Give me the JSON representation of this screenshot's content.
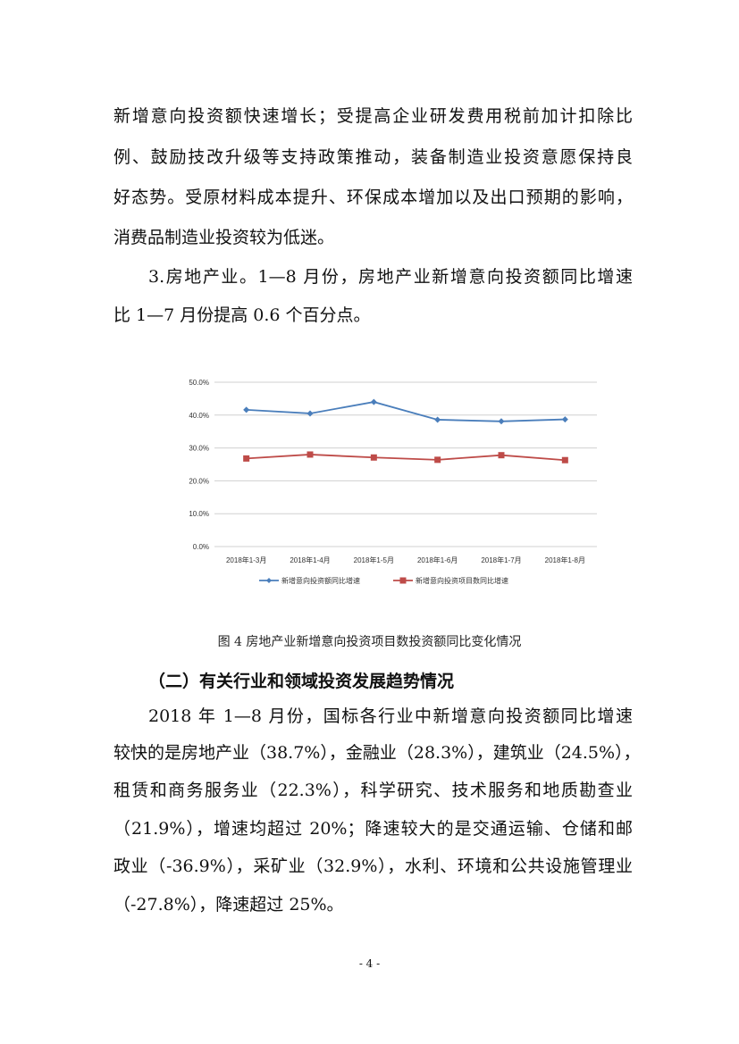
{
  "para1_lines": [
    "新增意向投资额快速增长；受提高企业研发费用税前加计扣除比",
    "例、鼓励技改升级等支持政策推动，装备制造业投资意愿保持良",
    "好态势。受原材料成本提升、环保成本增加以及出口预期的影响，",
    "消费品制造业投资较为低迷。"
  ],
  "para2_lines": [
    "3.房地产业。1—8 月份，房地产业新增意向投资额同比增速",
    "比 1—7 月份提高 0.6 个百分点。"
  ],
  "chart_data": {
    "type": "line",
    "categories": [
      "2018年1-3月",
      "2018年1-4月",
      "2018年1-5月",
      "2018年1-6月",
      "2018年1-7月",
      "2018年1-8月"
    ],
    "y_ticks": [
      "0.0%",
      "10.0%",
      "20.0%",
      "30.0%",
      "40.0%",
      "50.0%"
    ],
    "ylim": [
      0,
      50
    ],
    "grid": true,
    "legend_position": "bottom",
    "series": [
      {
        "name": "新增意向投资额同比增速",
        "values": [
          41.6,
          40.5,
          44.0,
          38.6,
          38.1,
          38.7
        ],
        "color": "#4a7ebb",
        "marker": "diamond"
      },
      {
        "name": "新增意向投资项目数同比增速",
        "values": [
          26.8,
          28.0,
          27.1,
          26.4,
          27.8,
          26.3
        ],
        "color": "#be4b48",
        "marker": "square"
      }
    ]
  },
  "caption": "图 4  房地产业新增意向投资项目数投资额同比变化情况",
  "heading": "（二）有关行业和领域投资发展趋势情况",
  "para3_lines": [
    "2018 年 1—8 月份，国标各行业中新增意向投资额同比增速",
    "较快的是房地产业（38.7%），金融业（28.3%），建筑业（24.5%），",
    "租赁和商务服务业（22.3%），科学研究、技术服务和地质勘查业",
    "（21.9%），增速均超过 20%；降速较大的是交通运输、仓储和邮",
    "政业（-36.9%），采矿业（32.9%），水利、环境和公共设施管理业",
    "（-27.8%），降速超过 25%。"
  ],
  "page_number": "- 4 -"
}
